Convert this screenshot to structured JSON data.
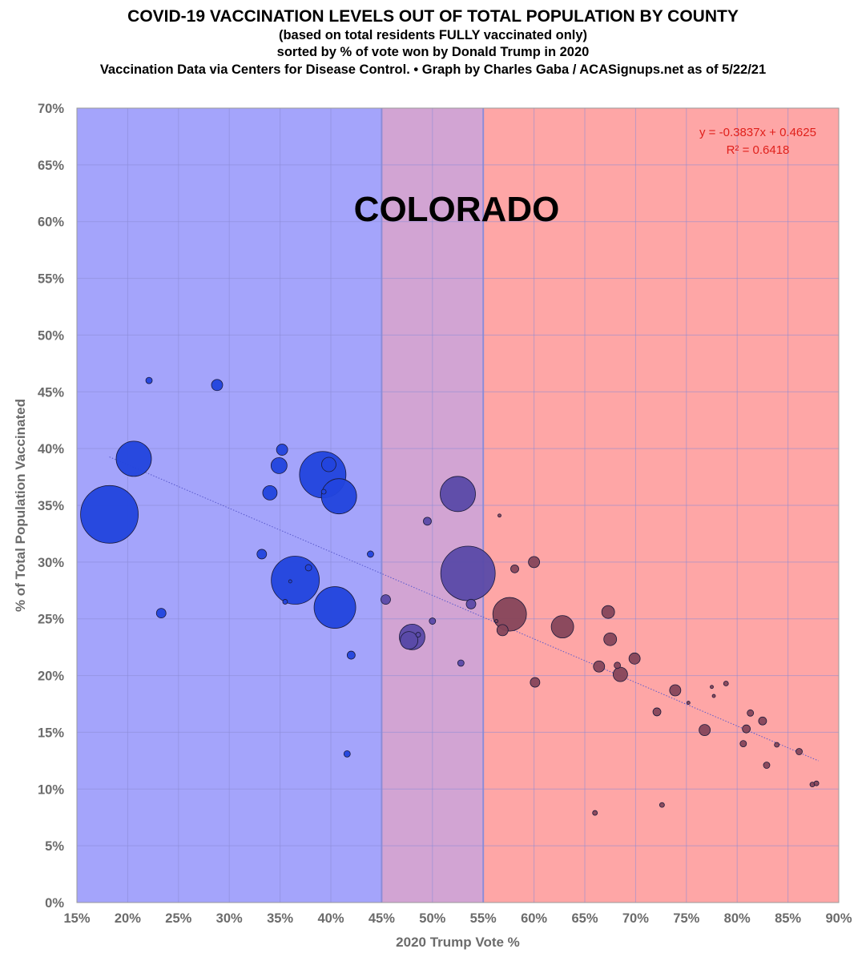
{
  "header": {
    "title": "COVID-19 VACCINATION LEVELS OUT OF TOTAL POPULATION BY COUNTY",
    "subtitle1": "(based on total residents FULLY vaccinated only)",
    "subtitle2": "sorted by % of vote won by Donald Trump in 2020",
    "credit": "Vaccination Data via Centers for Disease Control. • Graph by Charles Gaba / ACASignups.net as of 5/22/21"
  },
  "chart_data": {
    "type": "scatter",
    "title": "COVID-19 VACCINATION LEVELS OUT OF TOTAL POPULATION BY COUNTY",
    "state_label": "COLORADO",
    "xlabel": "2020 Trump Vote %",
    "ylabel": "% of Total Population Vaccinated",
    "xlim": [
      15,
      90
    ],
    "ylim": [
      0,
      70
    ],
    "x_ticks": [
      "15%",
      "20%",
      "25%",
      "30%",
      "35%",
      "40%",
      "45%",
      "50%",
      "55%",
      "60%",
      "65%",
      "70%",
      "75%",
      "80%",
      "85%",
      "90%"
    ],
    "y_ticks": [
      "0%",
      "5%",
      "10%",
      "15%",
      "20%",
      "25%",
      "30%",
      "35%",
      "40%",
      "45%",
      "50%",
      "55%",
      "60%",
      "65%",
      "70%"
    ],
    "grid": true,
    "regions": [
      {
        "name": "blue",
        "from": 15,
        "to": 45,
        "color": "#a4a4fb"
      },
      {
        "name": "purple",
        "from": 45,
        "to": 55,
        "color": "#d2a4d3"
      },
      {
        "name": "red",
        "from": 55,
        "to": 90,
        "color": "#fea6a6"
      }
    ],
    "trendline": {
      "equation": "y = -0.3837x + 0.4625",
      "r_squared": "R² = 0.6418",
      "slope": -0.3837,
      "intercept": 0.4625,
      "x_range": [
        18.2,
        88.0
      ]
    },
    "points": [
      {
        "x": 18.2,
        "y": 34.2,
        "size": 36
      },
      {
        "x": 20.6,
        "y": 39.1,
        "size": 22
      },
      {
        "x": 22.1,
        "y": 46.0,
        "size": 4
      },
      {
        "x": 23.3,
        "y": 25.5,
        "size": 6
      },
      {
        "x": 28.8,
        "y": 45.6,
        "size": 7
      },
      {
        "x": 33.2,
        "y": 30.7,
        "size": 6
      },
      {
        "x": 34.0,
        "y": 36.1,
        "size": 9
      },
      {
        "x": 34.9,
        "y": 38.5,
        "size": 10
      },
      {
        "x": 35.2,
        "y": 39.9,
        "size": 7
      },
      {
        "x": 35.5,
        "y": 26.5,
        "size": 3
      },
      {
        "x": 36.0,
        "y": 28.3,
        "size": 2
      },
      {
        "x": 36.5,
        "y": 28.4,
        "size": 30
      },
      {
        "x": 37.8,
        "y": 29.5,
        "size": 4
      },
      {
        "x": 39.2,
        "y": 37.7,
        "size": 29
      },
      {
        "x": 39.3,
        "y": 36.2,
        "size": 3
      },
      {
        "x": 39.8,
        "y": 38.6,
        "size": 9
      },
      {
        "x": 40.4,
        "y": 26.0,
        "size": 26
      },
      {
        "x": 40.8,
        "y": 35.8,
        "size": 22
      },
      {
        "x": 41.6,
        "y": 13.1,
        "size": 4
      },
      {
        "x": 42.0,
        "y": 21.8,
        "size": 5
      },
      {
        "x": 43.9,
        "y": 30.7,
        "size": 4
      },
      {
        "x": 45.4,
        "y": 26.7,
        "size": 6
      },
      {
        "x": 47.7,
        "y": 23.1,
        "size": 11
      },
      {
        "x": 48.0,
        "y": 23.4,
        "size": 16
      },
      {
        "x": 48.6,
        "y": 23.6,
        "size": 3
      },
      {
        "x": 49.5,
        "y": 33.6,
        "size": 5
      },
      {
        "x": 50.0,
        "y": 24.8,
        "size": 4
      },
      {
        "x": 52.5,
        "y": 36.0,
        "size": 22
      },
      {
        "x": 52.8,
        "y": 21.1,
        "size": 4
      },
      {
        "x": 53.5,
        "y": 29.0,
        "size": 34
      },
      {
        "x": 53.8,
        "y": 26.3,
        "size": 6
      },
      {
        "x": 56.3,
        "y": 24.8,
        "size": 2
      },
      {
        "x": 56.6,
        "y": 34.1,
        "size": 2
      },
      {
        "x": 56.9,
        "y": 24.0,
        "size": 7
      },
      {
        "x": 57.6,
        "y": 25.4,
        "size": 21
      },
      {
        "x": 58.1,
        "y": 29.4,
        "size": 5
      },
      {
        "x": 60.0,
        "y": 30.0,
        "size": 7
      },
      {
        "x": 60.1,
        "y": 19.4,
        "size": 6
      },
      {
        "x": 62.8,
        "y": 24.3,
        "size": 14
      },
      {
        "x": 66.0,
        "y": 7.9,
        "size": 3
      },
      {
        "x": 66.4,
        "y": 20.8,
        "size": 7
      },
      {
        "x": 67.3,
        "y": 25.6,
        "size": 8
      },
      {
        "x": 67.5,
        "y": 23.2,
        "size": 8
      },
      {
        "x": 68.2,
        "y": 20.9,
        "size": 4
      },
      {
        "x": 68.5,
        "y": 20.1,
        "size": 9
      },
      {
        "x": 69.9,
        "y": 21.5,
        "size": 7
      },
      {
        "x": 72.1,
        "y": 16.8,
        "size": 5
      },
      {
        "x": 72.6,
        "y": 8.6,
        "size": 3
      },
      {
        "x": 73.9,
        "y": 18.7,
        "size": 7
      },
      {
        "x": 75.2,
        "y": 17.6,
        "size": 2
      },
      {
        "x": 76.8,
        "y": 15.2,
        "size": 7
      },
      {
        "x": 77.5,
        "y": 19.0,
        "size": 2
      },
      {
        "x": 77.7,
        "y": 18.2,
        "size": 2
      },
      {
        "x": 78.9,
        "y": 19.3,
        "size": 3
      },
      {
        "x": 80.6,
        "y": 14.0,
        "size": 4
      },
      {
        "x": 80.9,
        "y": 15.3,
        "size": 5
      },
      {
        "x": 81.3,
        "y": 16.7,
        "size": 4
      },
      {
        "x": 82.5,
        "y": 16.0,
        "size": 5
      },
      {
        "x": 82.9,
        "y": 12.1,
        "size": 4
      },
      {
        "x": 83.9,
        "y": 13.9,
        "size": 3
      },
      {
        "x": 86.1,
        "y": 13.3,
        "size": 4
      },
      {
        "x": 87.4,
        "y": 10.4,
        "size": 3
      },
      {
        "x": 87.8,
        "y": 10.5,
        "size": 3
      }
    ],
    "colors": {
      "blue_point": "#2244dd",
      "purple_point": "#5a4aa8",
      "red_point": "#86445a",
      "equation_text": "#e0201b",
      "grid": "#8b8bd6"
    }
  }
}
